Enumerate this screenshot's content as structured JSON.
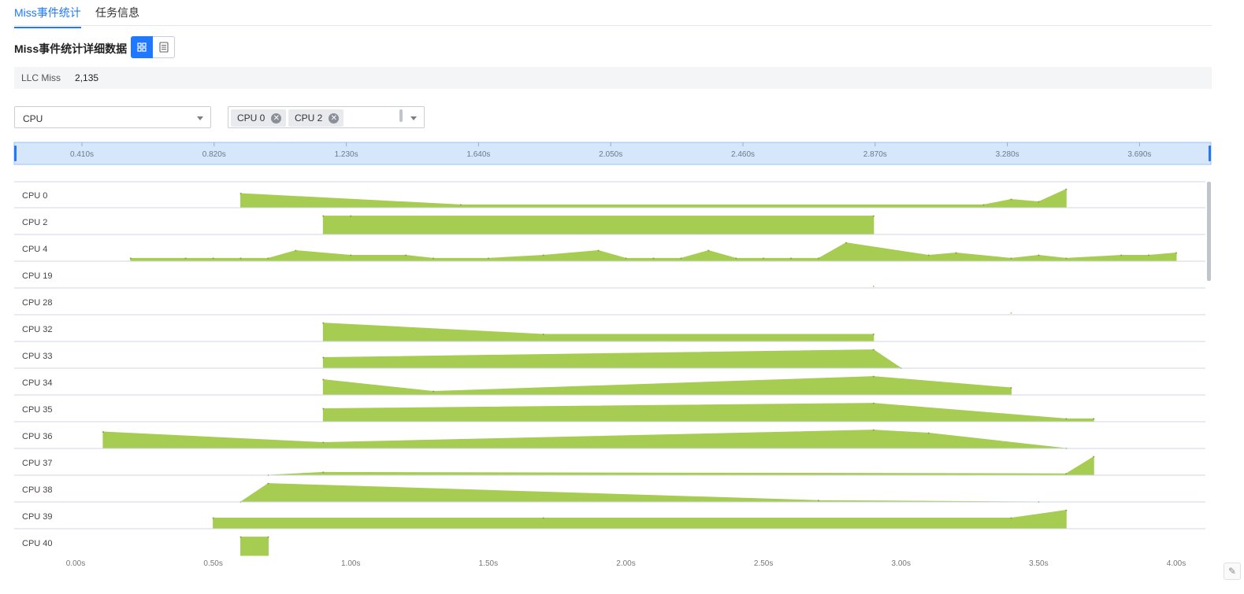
{
  "tabs": [
    "Miss事件统计",
    "任务信息"
  ],
  "section_title": "Miss事件统计详细数据",
  "view_toggle": {
    "grid_icon": "grid-icon",
    "list_icon": "list-icon"
  },
  "summary": {
    "label": "LLC Miss",
    "value": "2,135"
  },
  "filter": {
    "dimension": "CPU",
    "selected_tags": [
      "CPU 0",
      "CPU 2"
    ]
  },
  "brush_ticks": [
    "0.410s",
    "0.820s",
    "1.230s",
    "1.640s",
    "2.050s",
    "2.460s",
    "2.870s",
    "3.280s",
    "3.690s"
  ],
  "colors": {
    "area": "#a6cd51",
    "accent": "#1f78ff",
    "brush_bg": "#d6e7fb"
  },
  "chart_data": {
    "type": "area",
    "xlim": [
      0,
      4.0
    ],
    "x_ticks": [
      "0.00s",
      "0.50s",
      "1.00s",
      "1.50s",
      "2.00s",
      "2.50s",
      "3.00s",
      "3.50s",
      "4.00s"
    ],
    "series": [
      {
        "name": "CPU 0",
        "points": [
          [
            0.6,
            0.6
          ],
          [
            1.4,
            0.12
          ],
          [
            3.3,
            0.12
          ],
          [
            3.4,
            0.35
          ],
          [
            3.5,
            0.25
          ],
          [
            3.6,
            0.78
          ]
        ]
      },
      {
        "name": "CPU 2",
        "points": [
          [
            0.9,
            0.78
          ],
          [
            1.0,
            0.78
          ],
          [
            2.9,
            0.78
          ]
        ]
      },
      {
        "name": "CPU 4",
        "points": [
          [
            0.2,
            0.12
          ],
          [
            0.4,
            0.12
          ],
          [
            0.5,
            0.12
          ],
          [
            0.6,
            0.12
          ],
          [
            0.7,
            0.12
          ],
          [
            0.8,
            0.45
          ],
          [
            1.0,
            0.25
          ],
          [
            1.2,
            0.25
          ],
          [
            1.3,
            0.12
          ],
          [
            1.5,
            0.12
          ],
          [
            1.7,
            0.25
          ],
          [
            1.9,
            0.45
          ],
          [
            2.0,
            0.12
          ],
          [
            2.1,
            0.12
          ],
          [
            2.2,
            0.12
          ],
          [
            2.3,
            0.45
          ],
          [
            2.4,
            0.12
          ],
          [
            2.5,
            0.12
          ],
          [
            2.6,
            0.12
          ],
          [
            2.7,
            0.12
          ],
          [
            2.8,
            0.78
          ],
          [
            3.1,
            0.25
          ],
          [
            3.2,
            0.35
          ],
          [
            3.4,
            0.12
          ],
          [
            3.5,
            0.25
          ],
          [
            3.6,
            0.12
          ],
          [
            3.8,
            0.25
          ],
          [
            3.9,
            0.25
          ],
          [
            4.0,
            0.35
          ]
        ]
      },
      {
        "name": "CPU 19",
        "points": [
          [
            2.9,
            0.0
          ]
        ]
      },
      {
        "name": "CPU 28",
        "points": [
          [
            3.4,
            0.0
          ]
        ]
      },
      {
        "name": "CPU 32",
        "points": [
          [
            0.9,
            0.78
          ],
          [
            1.7,
            0.3
          ],
          [
            2.9,
            0.3
          ]
        ]
      },
      {
        "name": "CPU 33",
        "points": [
          [
            0.9,
            0.45
          ],
          [
            2.9,
            0.78
          ],
          [
            3.0,
            0.0
          ]
        ]
      },
      {
        "name": "CPU 34",
        "points": [
          [
            0.9,
            0.65
          ],
          [
            1.3,
            0.15
          ],
          [
            2.9,
            0.78
          ],
          [
            3.4,
            0.3
          ]
        ]
      },
      {
        "name": "CPU 35",
        "points": [
          [
            0.9,
            0.55
          ],
          [
            2.9,
            0.78
          ],
          [
            3.6,
            0.12
          ],
          [
            3.7,
            0.12
          ]
        ]
      },
      {
        "name": "CPU 36",
        "points": [
          [
            0.1,
            0.7
          ],
          [
            0.9,
            0.25
          ],
          [
            2.9,
            0.78
          ],
          [
            3.1,
            0.65
          ],
          [
            3.6,
            0.0
          ]
        ]
      },
      {
        "name": "CPU 37",
        "points": [
          [
            0.7,
            0.0
          ],
          [
            0.9,
            0.12
          ],
          [
            3.6,
            0.06
          ],
          [
            3.7,
            0.78
          ]
        ]
      },
      {
        "name": "CPU 38",
        "points": [
          [
            0.6,
            0.0
          ],
          [
            0.7,
            0.78
          ],
          [
            2.7,
            0.06
          ],
          [
            3.5,
            0.0
          ]
        ]
      },
      {
        "name": "CPU 39",
        "points": [
          [
            0.5,
            0.45
          ],
          [
            1.7,
            0.45
          ],
          [
            3.4,
            0.45
          ],
          [
            3.6,
            0.78
          ]
        ]
      },
      {
        "name": "CPU 40",
        "points": [
          [
            0.6,
            0.78
          ],
          [
            0.7,
            0.78
          ]
        ]
      }
    ]
  }
}
